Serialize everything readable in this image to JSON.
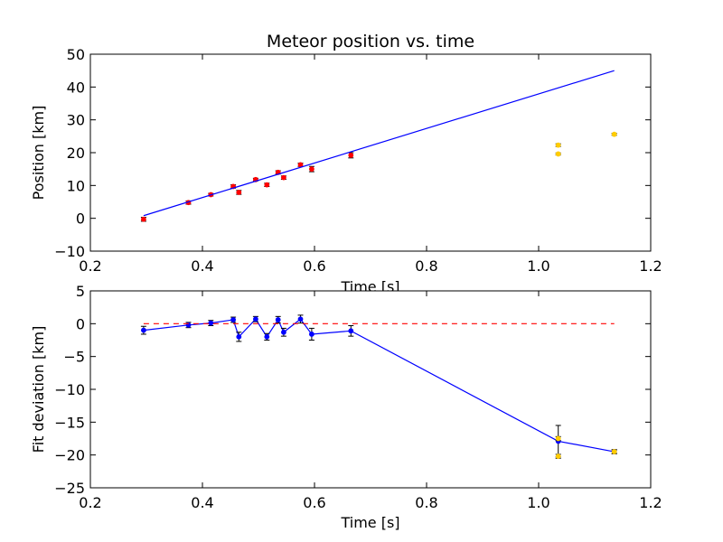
{
  "chart_data": [
    {
      "type": "scatter",
      "title": "Meteor position vs. time",
      "xlabel": "Time [s]",
      "ylabel": "Position [km]",
      "xlim": [
        0.2,
        1.2
      ],
      "ylim": [
        -10,
        50
      ],
      "xticks": [
        "0.2",
        "0.4",
        "0.6",
        "0.8",
        "1.0",
        "1.2"
      ],
      "yticks": [
        "−10",
        "0",
        "10",
        "20",
        "30",
        "40",
        "50"
      ],
      "series": [
        {
          "kind": "errorbar",
          "color": "#ff0000",
          "points": [
            {
              "x": 0.295,
              "y": -0.3,
              "err": 0.6
            },
            {
              "x": 0.375,
              "y": 4.8,
              "err": 0.5
            },
            {
              "x": 0.415,
              "y": 7.2,
              "err": 0.4
            },
            {
              "x": 0.455,
              "y": 9.7,
              "err": 0.5
            },
            {
              "x": 0.465,
              "y": 7.9,
              "err": 0.6
            },
            {
              "x": 0.495,
              "y": 11.8,
              "err": 0.4
            },
            {
              "x": 0.515,
              "y": 10.2,
              "err": 0.5
            },
            {
              "x": 0.535,
              "y": 14.0,
              "err": 0.5
            },
            {
              "x": 0.545,
              "y": 12.4,
              "err": 0.5
            },
            {
              "x": 0.575,
              "y": 16.3,
              "err": 0.5
            },
            {
              "x": 0.595,
              "y": 15.0,
              "err": 0.8
            },
            {
              "x": 0.665,
              "y": 19.2,
              "err": 0.8
            }
          ]
        },
        {
          "kind": "errorbar",
          "color": "#ffcc00",
          "points": [
            {
              "x": 1.035,
              "y": 22.3,
              "err": 0.4
            },
            {
              "x": 1.035,
              "y": 19.6,
              "err": 0.3
            },
            {
              "x": 1.135,
              "y": 25.6,
              "err": 0.3
            }
          ]
        },
        {
          "kind": "line",
          "color": "#0000ff",
          "x": [
            0.295,
            1.135
          ],
          "y": [
            0.8,
            45.0
          ]
        }
      ]
    },
    {
      "type": "line",
      "xlabel": "Time [s]",
      "ylabel": "Fit deviation [km]",
      "xlim": [
        0.2,
        1.2
      ],
      "ylim": [
        -25,
        5
      ],
      "xticks": [
        "0.2",
        "0.4",
        "0.6",
        "0.8",
        "1.0",
        "1.2"
      ],
      "yticks": [
        "−25",
        "−20",
        "−15",
        "−10",
        "−5",
        "0",
        "5"
      ],
      "series": [
        {
          "kind": "errorbar-line",
          "color": "#0000ff",
          "points": [
            {
              "x": 0.295,
              "y": -1.0,
              "err": 0.6
            },
            {
              "x": 0.375,
              "y": -0.2,
              "err": 0.4
            },
            {
              "x": 0.415,
              "y": 0.1,
              "err": 0.4
            },
            {
              "x": 0.455,
              "y": 0.6,
              "err": 0.4
            },
            {
              "x": 0.465,
              "y": -2.0,
              "err": 0.7
            },
            {
              "x": 0.495,
              "y": 0.7,
              "err": 0.4
            },
            {
              "x": 0.515,
              "y": -2.0,
              "err": 0.5
            },
            {
              "x": 0.535,
              "y": 0.6,
              "err": 0.5
            },
            {
              "x": 0.545,
              "y": -1.3,
              "err": 0.6
            },
            {
              "x": 0.575,
              "y": 0.7,
              "err": 0.6
            },
            {
              "x": 0.595,
              "y": -1.6,
              "err": 0.9
            },
            {
              "x": 0.665,
              "y": -1.1,
              "err": 0.8
            },
            {
              "x": 1.035,
              "y": -17.9,
              "err": 2.4
            },
            {
              "x": 1.135,
              "y": -19.5,
              "err": 0.3
            }
          ]
        },
        {
          "kind": "markers",
          "color": "#ffcc00",
          "points": [
            {
              "x": 1.035,
              "y": -17.5,
              "err": 0.3
            },
            {
              "x": 1.035,
              "y": -20.2,
              "err": 0.3
            },
            {
              "x": 1.135,
              "y": -19.5,
              "err": 0.3
            }
          ]
        },
        {
          "kind": "dashed-line",
          "color": "#ff0000",
          "x": [
            0.295,
            1.135
          ],
          "y": [
            0,
            0
          ]
        }
      ]
    }
  ]
}
